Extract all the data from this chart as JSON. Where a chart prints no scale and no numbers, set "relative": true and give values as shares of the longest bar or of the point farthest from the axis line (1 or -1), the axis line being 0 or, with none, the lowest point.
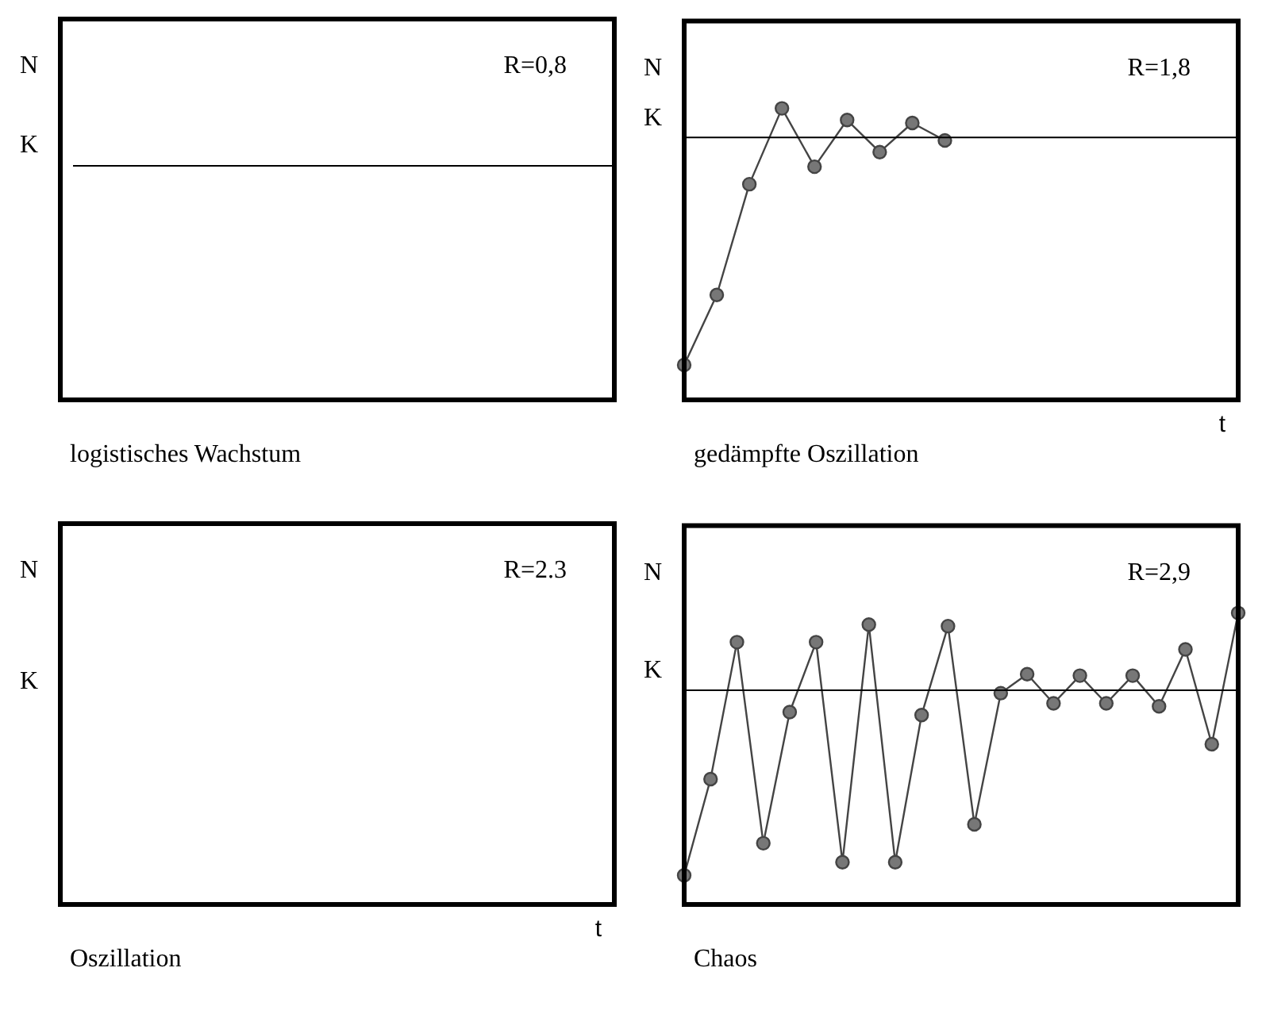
{
  "chart_data": [
    {
      "type": "other",
      "title": "logistisches Wachstum",
      "ylabel": "N",
      "annotations": [
        "R=0,8",
        "K"
      ]
    },
    {
      "type": "line",
      "title": "gedämpfte Oszillation",
      "ylabel": "N",
      "xlabel": "t",
      "relative": true,
      "marker": "circle",
      "categories": [
        null,
        null,
        null,
        null,
        null,
        null,
        null,
        null,
        null,
        null,
        null,
        null,
        null,
        null,
        null,
        null,
        null,
        null
      ],
      "series": [
        {
          "color": "#444444",
          "values": [
            0.12,
            0.36,
            0.74,
            1,
            0.8,
            0.96,
            0.85,
            0.95,
            0.89,
            null,
            null,
            null,
            null,
            null,
            null,
            null,
            null,
            null
          ]
        }
      ],
      "ref_lines": [
        {
          "axis": "y",
          "value": 0.9,
          "label": "K",
          "color": "#000000"
        }
      ],
      "annotations": [
        "R=1,8"
      ]
    },
    {
      "type": "other",
      "title": "Oszillation",
      "ylabel": "N",
      "xlabel": "t",
      "annotations": [
        "R=2.3",
        "K"
      ]
    },
    {
      "type": "line",
      "title": "Chaos",
      "ylabel": "N",
      "relative": true,
      "marker": "circle",
      "categories": [
        null,
        null,
        null,
        null,
        null,
        null,
        null,
        null,
        null,
        null,
        null,
        null,
        null,
        null,
        null,
        null,
        null,
        null,
        null,
        null,
        null,
        null
      ],
      "series": [
        {
          "color": "#444444",
          "values": [
            0.1,
            0.43,
            0.9,
            0.21,
            0.66,
            0.9,
            0.145,
            0.96,
            0.145,
            0.65,
            0.955,
            0.275,
            0.725,
            0.79,
            0.69,
            0.785,
            0.69,
            0.785,
            0.68,
            0.875,
            0.55,
            1
          ]
        }
      ],
      "ref_lines": [
        {
          "axis": "y",
          "value": 0.735,
          "label": "K",
          "color": "#000000"
        }
      ],
      "annotations": [
        "R=2,9"
      ]
    }
  ]
}
